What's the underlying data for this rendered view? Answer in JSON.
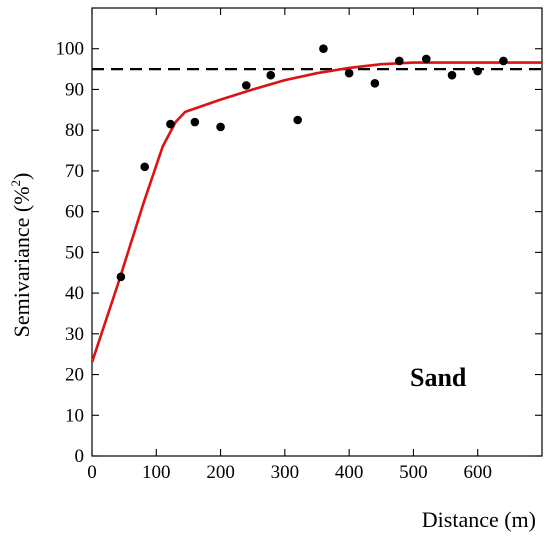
{
  "chart_data": {
    "type": "scatter",
    "xlabel": "Distance (m)",
    "ylabel_main": "Semivariance (%",
    "ylabel_sup": "2",
    "ylabel_close": ")",
    "annotation": "Sand",
    "xlim": [
      0,
      700
    ],
    "ylim": [
      0,
      110
    ],
    "x_ticks": [
      0,
      100,
      200,
      300,
      400,
      500,
      600
    ],
    "y_ticks": [
      0,
      10,
      20,
      30,
      40,
      50,
      60,
      70,
      80,
      90,
      100
    ],
    "grid": false,
    "points": [
      {
        "x": 45,
        "y": 44
      },
      {
        "x": 82,
        "y": 71
      },
      {
        "x": 122,
        "y": 81.5
      },
      {
        "x": 160,
        "y": 82
      },
      {
        "x": 200,
        "y": 80.8
      },
      {
        "x": 240,
        "y": 91
      },
      {
        "x": 278,
        "y": 93.5
      },
      {
        "x": 320,
        "y": 82.5
      },
      {
        "x": 360,
        "y": 100
      },
      {
        "x": 400,
        "y": 94
      },
      {
        "x": 440,
        "y": 91.5
      },
      {
        "x": 478,
        "y": 97
      },
      {
        "x": 520,
        "y": 97.5
      },
      {
        "x": 560,
        "y": 93.5
      },
      {
        "x": 600,
        "y": 94.5
      },
      {
        "x": 640,
        "y": 97
      }
    ],
    "fit_curve": [
      {
        "x": 0,
        "y": 23
      },
      {
        "x": 40,
        "y": 42
      },
      {
        "x": 80,
        "y": 62
      },
      {
        "x": 110,
        "y": 76
      },
      {
        "x": 130,
        "y": 82
      },
      {
        "x": 145,
        "y": 84.5
      },
      {
        "x": 200,
        "y": 87.5
      },
      {
        "x": 250,
        "y": 90
      },
      {
        "x": 300,
        "y": 92.3
      },
      {
        "x": 350,
        "y": 94
      },
      {
        "x": 400,
        "y": 95.3
      },
      {
        "x": 450,
        "y": 96.2
      },
      {
        "x": 500,
        "y": 96.6
      },
      {
        "x": 600,
        "y": 96.6
      },
      {
        "x": 700,
        "y": 96.6
      }
    ],
    "reference_line_y": 95,
    "colors": {
      "fit": "#dd1111",
      "points": "#000000",
      "reference": "#000000"
    }
  }
}
